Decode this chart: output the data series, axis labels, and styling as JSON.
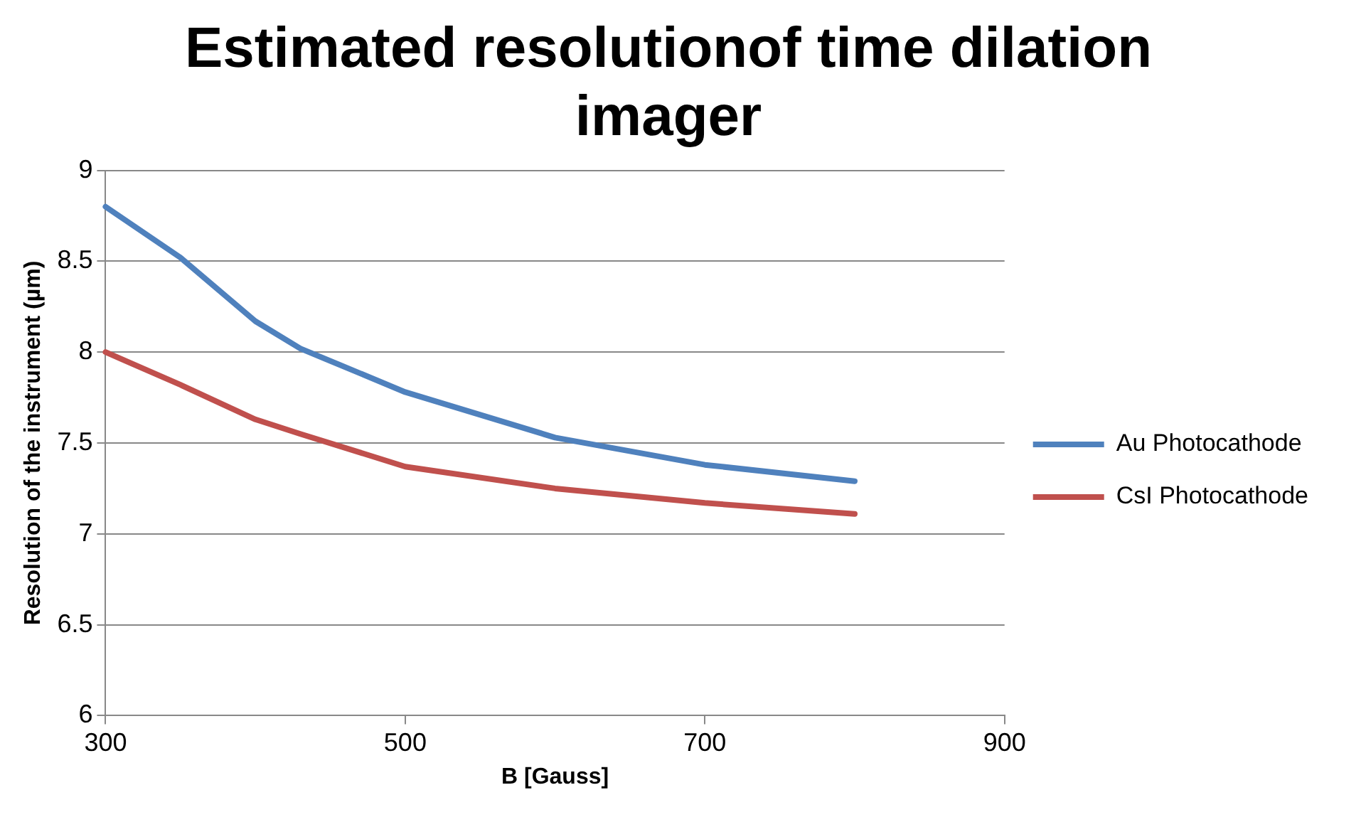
{
  "chart_data": {
    "type": "line",
    "title": "Estimated resolutionof time dilation imager",
    "xlabel": "B [Gauss]",
    "ylabel": "Resolution of the instrument (µm)",
    "x": [
      300,
      350,
      400,
      430,
      500,
      600,
      700,
      800
    ],
    "series": [
      {
        "name": "Au Photocathode",
        "color": "#4f81bd",
        "values": [
          8.8,
          8.52,
          8.17,
          8.02,
          7.78,
          7.53,
          7.38,
          7.29
        ]
      },
      {
        "name": "CsI Photocathode",
        "color": "#c0504d",
        "values": [
          8.0,
          7.82,
          7.63,
          7.55,
          7.37,
          7.25,
          7.17,
          7.11
        ]
      }
    ],
    "xlim": [
      300,
      900
    ],
    "xticks": [
      300,
      500,
      700,
      900
    ],
    "ylim": [
      6,
      9
    ],
    "yticks": [
      6,
      6.5,
      7,
      7.5,
      8,
      8.5,
      9
    ],
    "grid": "y",
    "legend": "right",
    "marker": "none",
    "line_style": "solid"
  }
}
